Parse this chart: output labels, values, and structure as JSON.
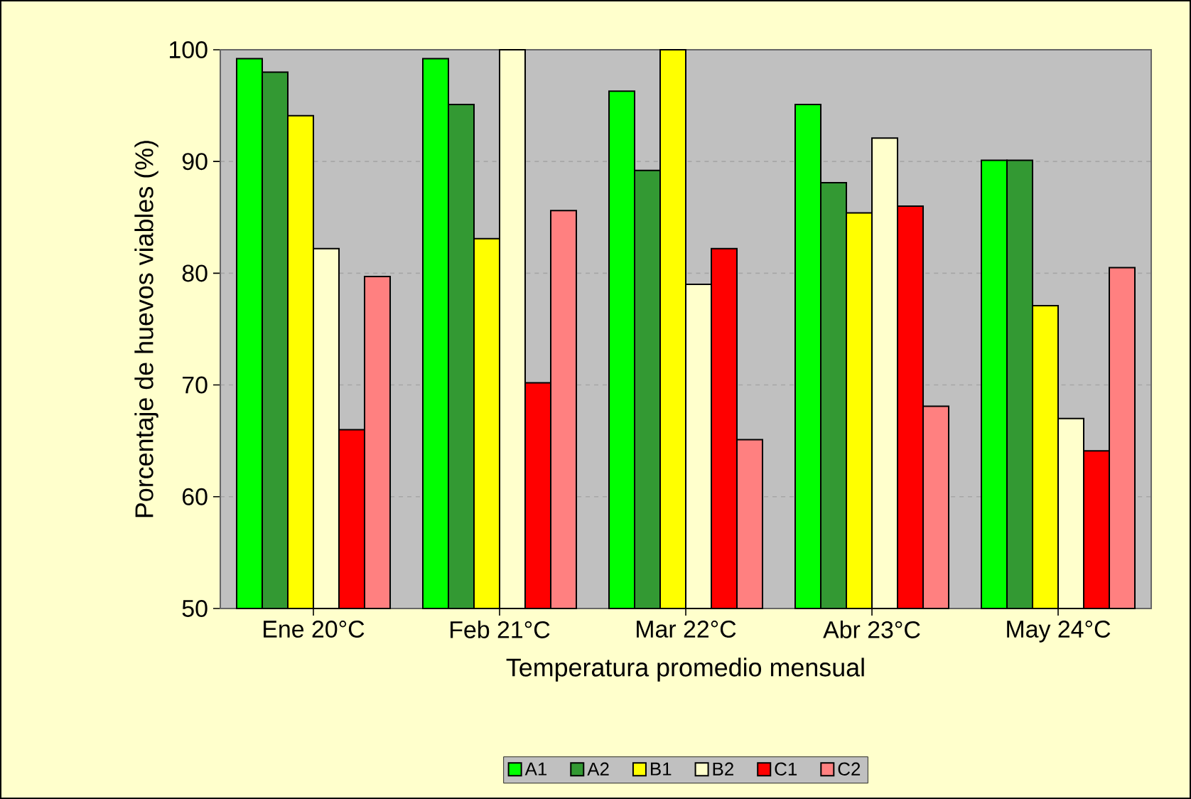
{
  "chart_data": {
    "type": "bar",
    "xlabel": "Temperatura promedio mensual",
    "ylabel": "Porcentaje de huevos viables (%)",
    "categories": [
      "Ene   20°C",
      "Feb   21°C",
      "Mar   22°C",
      "Abr   23°C",
      "May   24°C"
    ],
    "series": [
      {
        "name": "A1",
        "color": "#00ff00",
        "values": [
          99.2,
          99.2,
          96.3,
          95.1,
          90.1
        ]
      },
      {
        "name": "A2",
        "color": "#339933",
        "values": [
          98.0,
          95.1,
          89.2,
          88.1,
          90.1
        ]
      },
      {
        "name": "B1",
        "color": "#ffff00",
        "values": [
          94.1,
          83.1,
          100,
          85.4,
          77.1
        ]
      },
      {
        "name": "B2",
        "color": "#ffffcc",
        "values": [
          82.2,
          100,
          79.0,
          92.1,
          67.0
        ]
      },
      {
        "name": "C1",
        "color": "#ff0000",
        "values": [
          66.0,
          70.2,
          82.2,
          86.0,
          64.1
        ]
      },
      {
        "name": "C2",
        "color": "#ff8080",
        "values": [
          79.7,
          85.6,
          65.1,
          68.1,
          80.5
        ]
      }
    ],
    "ylim": [
      50,
      100
    ],
    "yticks": [
      50,
      60,
      70,
      80,
      90,
      100
    ],
    "grid": "y",
    "legend": "bottom"
  }
}
